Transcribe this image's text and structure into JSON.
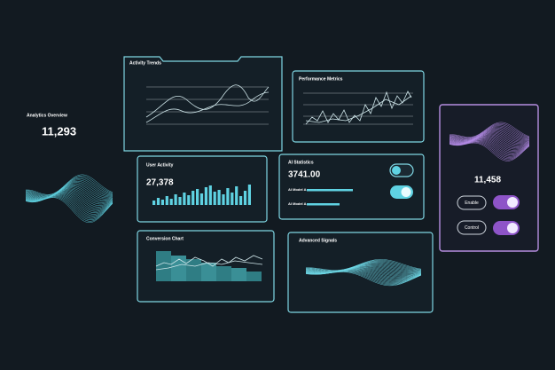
{
  "analytics_overview": {
    "title": "Analytics Overview",
    "value": "11,293"
  },
  "activity_trends": {
    "title": "Activity Trends"
  },
  "performance_metrics": {
    "title": "Performance Metrics"
  },
  "user_activity": {
    "title": "User Activity",
    "value": "27,378"
  },
  "ai_statistics": {
    "title": "AI Statistics",
    "value": "3741.00",
    "rows": [
      "AI Model A",
      "AI Model A"
    ]
  },
  "control_panel": {
    "value": "11,458",
    "buttons": [
      "Enable",
      "Control"
    ]
  },
  "conversion_chart": {
    "title": "Conversion Chart"
  },
  "advanced_signals": {
    "title": "Advanced Signals"
  }
}
